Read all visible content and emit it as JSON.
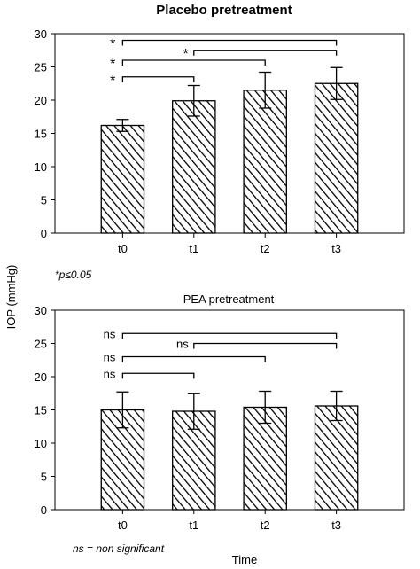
{
  "figure": {
    "ylabel": "IOP (mmHg)",
    "xlabel": "Time"
  },
  "chart_data": [
    {
      "type": "bar",
      "title": "Placebo pretreatment",
      "categories": [
        "t0",
        "t1",
        "t2",
        "t3"
      ],
      "values": [
        16.2,
        19.9,
        21.5,
        22.5
      ],
      "errors": [
        0.9,
        2.3,
        2.7,
        2.4
      ],
      "ylim": [
        0,
        30
      ],
      "yticks": [
        "0",
        "5",
        "10",
        "15",
        "20",
        "25",
        "30"
      ],
      "brackets": [
        {
          "from": "t0",
          "to": "t3",
          "label": "*",
          "level": 29
        },
        {
          "from": "t1",
          "to": "t3",
          "label": "*",
          "level": 27.5
        },
        {
          "from": "t0",
          "to": "t2",
          "label": "*",
          "level": 26
        },
        {
          "from": "t0",
          "to": "t1",
          "label": "*",
          "level": 23.5
        }
      ],
      "note": "*p≤0.05"
    },
    {
      "type": "bar",
      "title": "PEA pretreatment",
      "categories": [
        "t0",
        "t1",
        "t2",
        "t3"
      ],
      "values": [
        15.0,
        14.8,
        15.4,
        15.6
      ],
      "errors": [
        2.7,
        2.7,
        2.4,
        2.2
      ],
      "ylim": [
        0,
        30
      ],
      "yticks": [
        "0",
        "5",
        "10",
        "15",
        "20",
        "25",
        "30"
      ],
      "brackets": [
        {
          "from": "t0",
          "to": "t3",
          "label": "ns",
          "level": 26.5
        },
        {
          "from": "t1",
          "to": "t3",
          "label": "ns",
          "level": 25
        },
        {
          "from": "t0",
          "to": "t2",
          "label": "ns",
          "level": 23
        },
        {
          "from": "t0",
          "to": "t1",
          "label": "ns",
          "level": 20.5
        }
      ],
      "note": "ns = non significant"
    }
  ]
}
